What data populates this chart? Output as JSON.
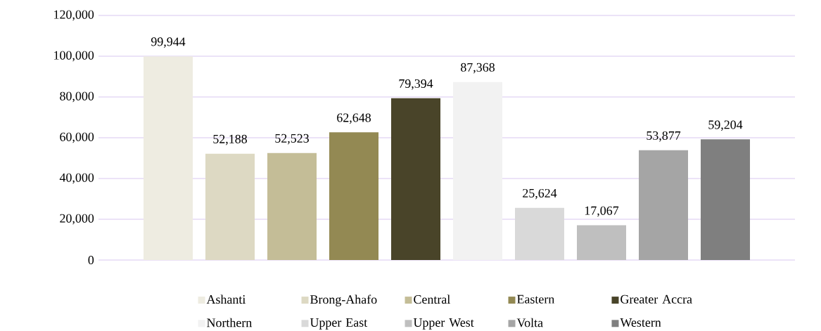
{
  "chart_data": {
    "type": "bar",
    "categories": [
      null
    ],
    "series": [
      {
        "name": "Ashanti",
        "color": "#eeece1",
        "values": [
          99944
        ],
        "value_labels": [
          "99,944"
        ]
      },
      {
        "name": "Brong-Ahafo",
        "color": "#ddd9c3",
        "values": [
          52188
        ],
        "value_labels": [
          "52,188"
        ]
      },
      {
        "name": "Central",
        "color": "#c4bd97",
        "values": [
          52523
        ],
        "value_labels": [
          "52,523"
        ]
      },
      {
        "name": "Eastern",
        "color": "#938953",
        "values": [
          62648
        ],
        "value_labels": [
          "62,648"
        ]
      },
      {
        "name": "Greater Accra",
        "color": "#494429",
        "values": [
          79394
        ],
        "value_labels": [
          "79,394"
        ]
      },
      {
        "name": "Northern",
        "color": "#f2f2f2",
        "values": [
          87368
        ],
        "value_labels": [
          "87,368"
        ]
      },
      {
        "name": "Upper East",
        "color": "#d9d9d9",
        "values": [
          25624
        ],
        "value_labels": [
          "25,624"
        ]
      },
      {
        "name": "Upper West",
        "color": "#bfbfbf",
        "values": [
          17067
        ],
        "value_labels": [
          "17,067"
        ]
      },
      {
        "name": "Volta",
        "color": "#a5a5a5",
        "values": [
          53877
        ],
        "value_labels": [
          "53,877"
        ]
      },
      {
        "name": "Western",
        "color": "#7f7f7f",
        "values": [
          59204
        ],
        "value_labels": [
          "59,204"
        ]
      }
    ],
    "ylim": [
      0,
      120000
    ],
    "yticks": [
      0,
      {
        "value": 20000,
        "label": "20,000"
      },
      {
        "value": 40000,
        "label": "40,000"
      },
      {
        "value": 60000,
        "label": "60,000"
      },
      {
        "value": 80000,
        "label": "80,000"
      },
      {
        "value": 100000,
        "label": "100,000"
      },
      {
        "value": 120000,
        "label": "120,000"
      }
    ],
    "grid": "y",
    "legend": "bottom"
  }
}
